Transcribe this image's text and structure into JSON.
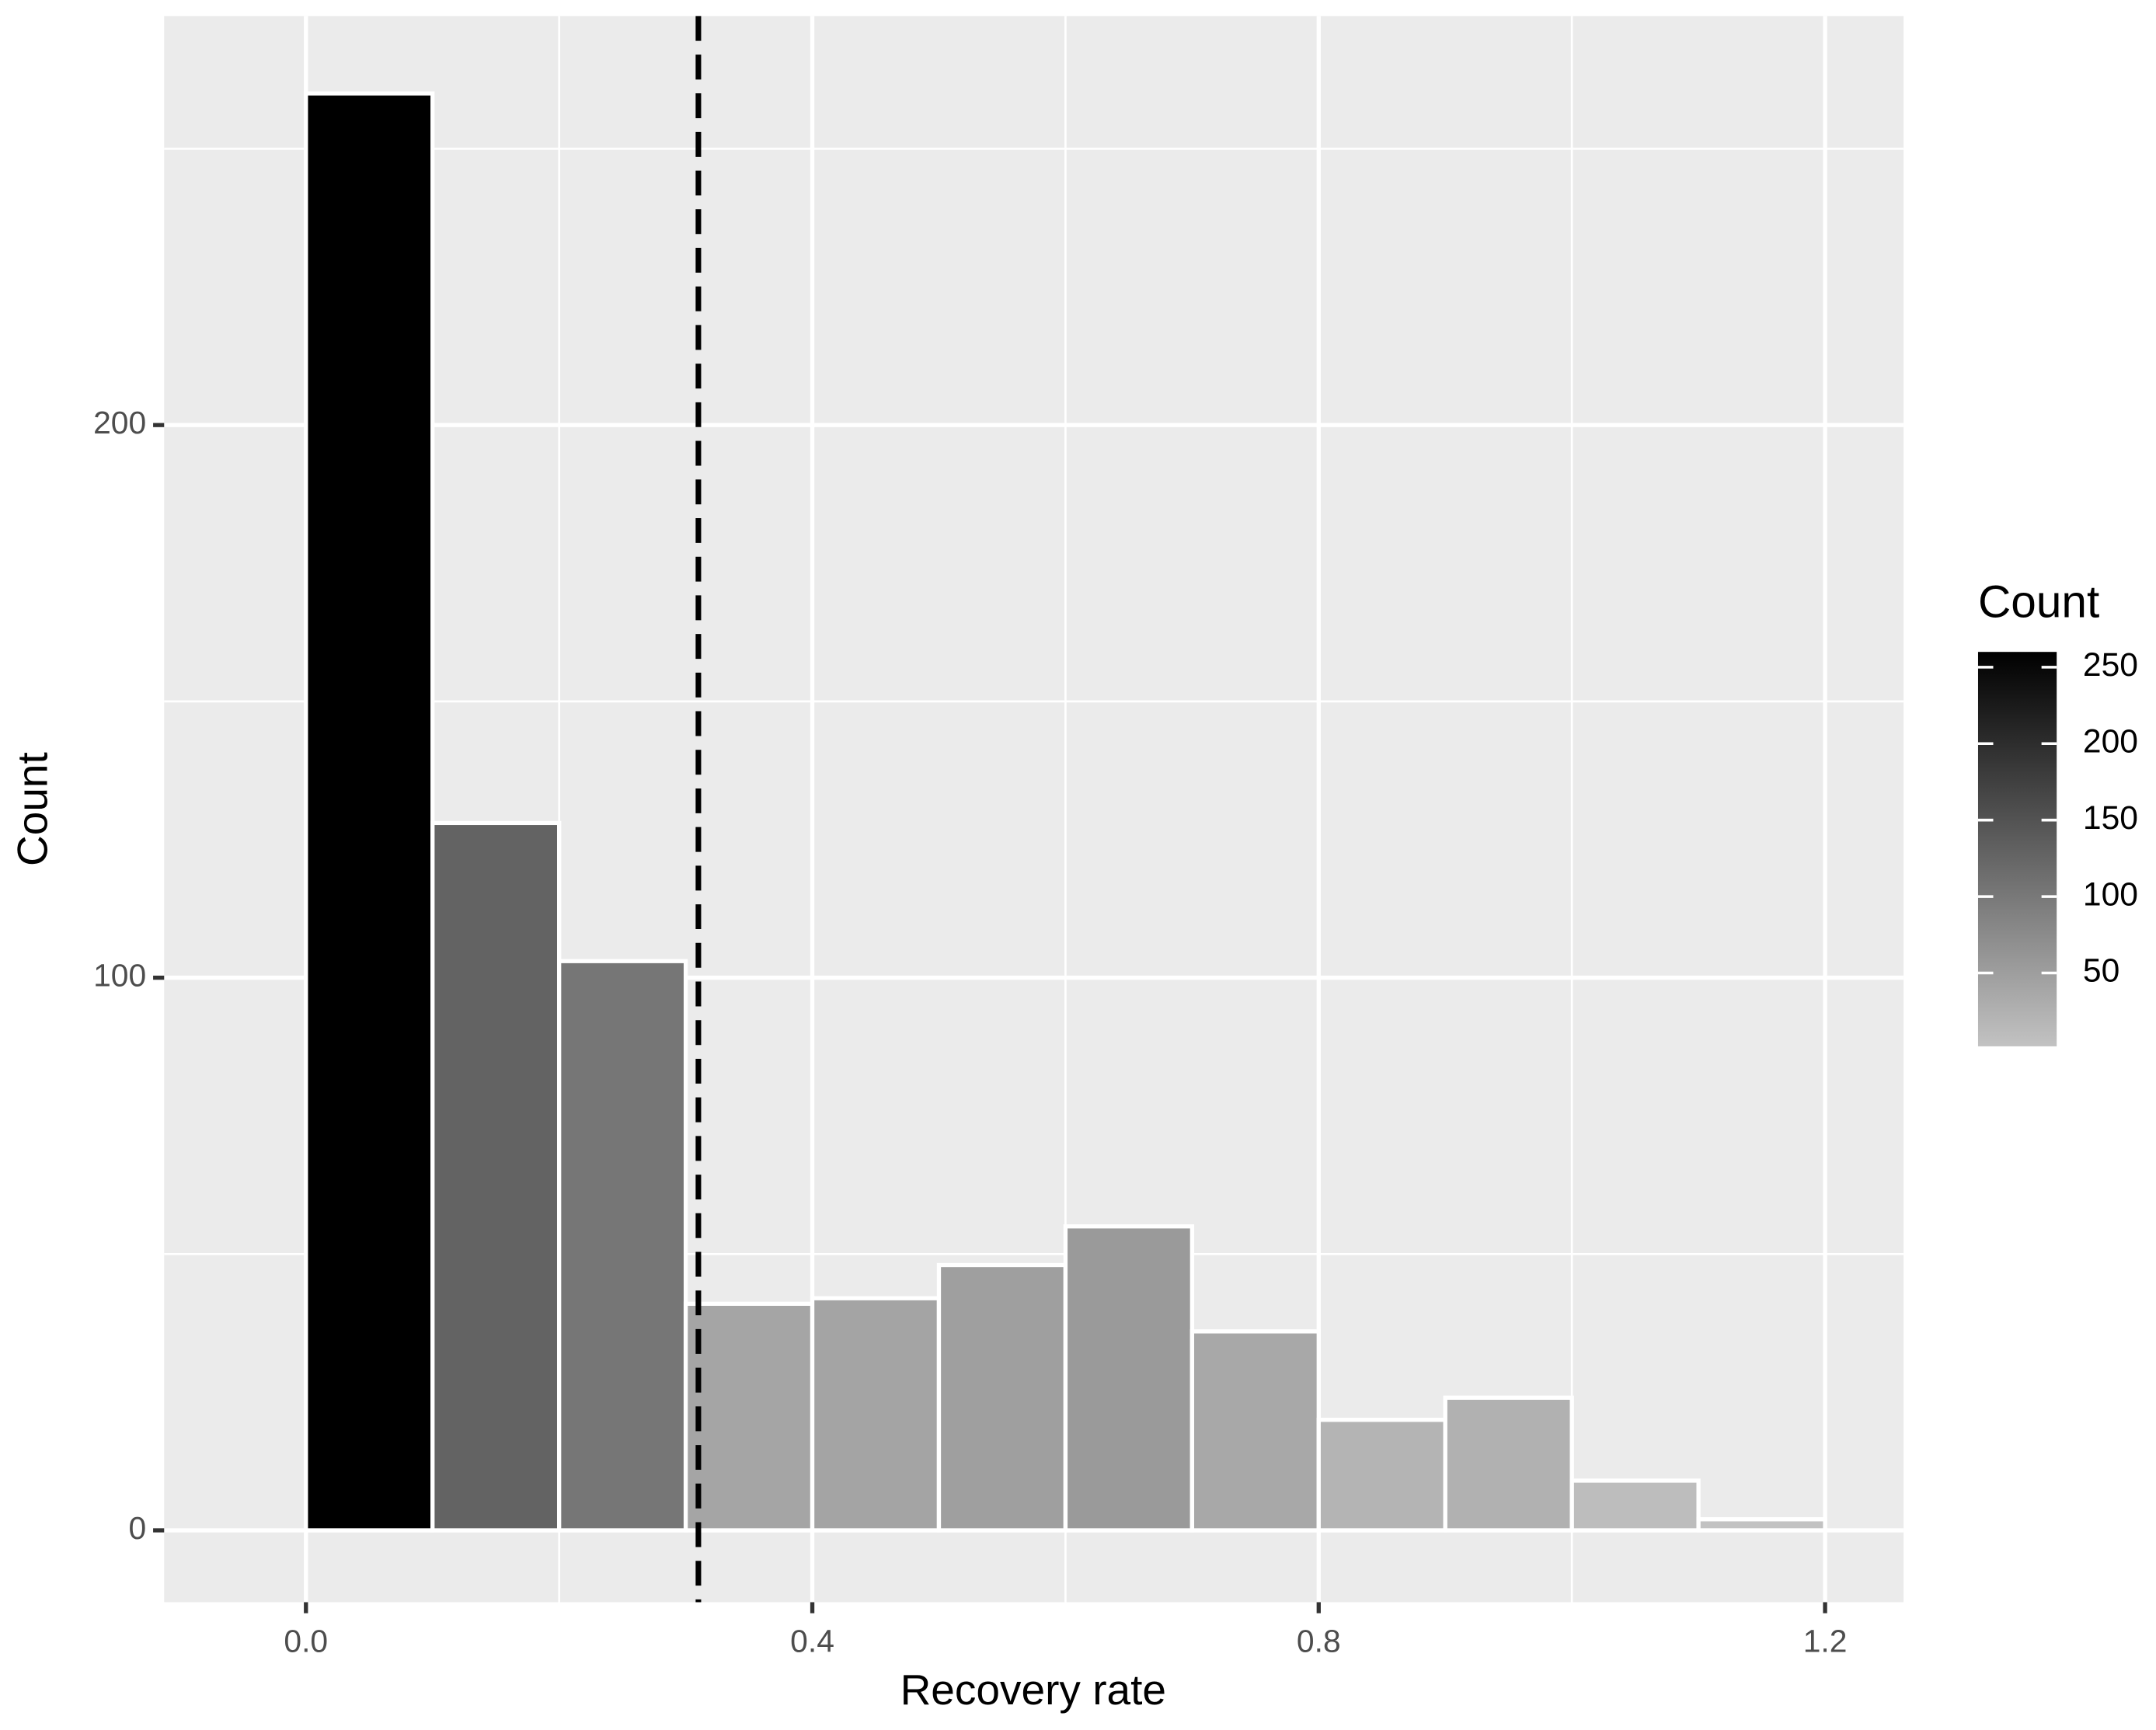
{
  "chart_data": {
    "type": "histogram",
    "x_label": "Recovery rate",
    "y_label": "Count",
    "bins": [
      0.0,
      0.1,
      0.2,
      0.3,
      0.4,
      0.5,
      0.6,
      0.7,
      0.8,
      0.9,
      1.0,
      1.1,
      1.2
    ],
    "values": [
      260,
      128,
      103,
      41,
      42,
      48,
      55,
      36,
      20,
      24,
      9,
      2
    ],
    "xlim": [
      -0.112,
      1.262
    ],
    "xticks": [
      {
        "value": 0,
        "label": "0.0"
      },
      0.4,
      0.8,
      1.2
    ],
    "x_minor_ticks": [
      0.2,
      0.6,
      1.0
    ],
    "ylim": [
      -13,
      274
    ],
    "yticks": [
      0,
      100,
      200
    ],
    "y_minor_ticks": [
      50,
      150,
      250
    ],
    "grid": true,
    "vline": 0.31,
    "legend": {
      "title": "Count",
      "position": "right",
      "fill_low": "#c2c2c2",
      "fill_high": "#000000",
      "fill_lim": [
        2,
        260
      ],
      "ticks": [
        50,
        100,
        150,
        200,
        250
      ]
    }
  }
}
